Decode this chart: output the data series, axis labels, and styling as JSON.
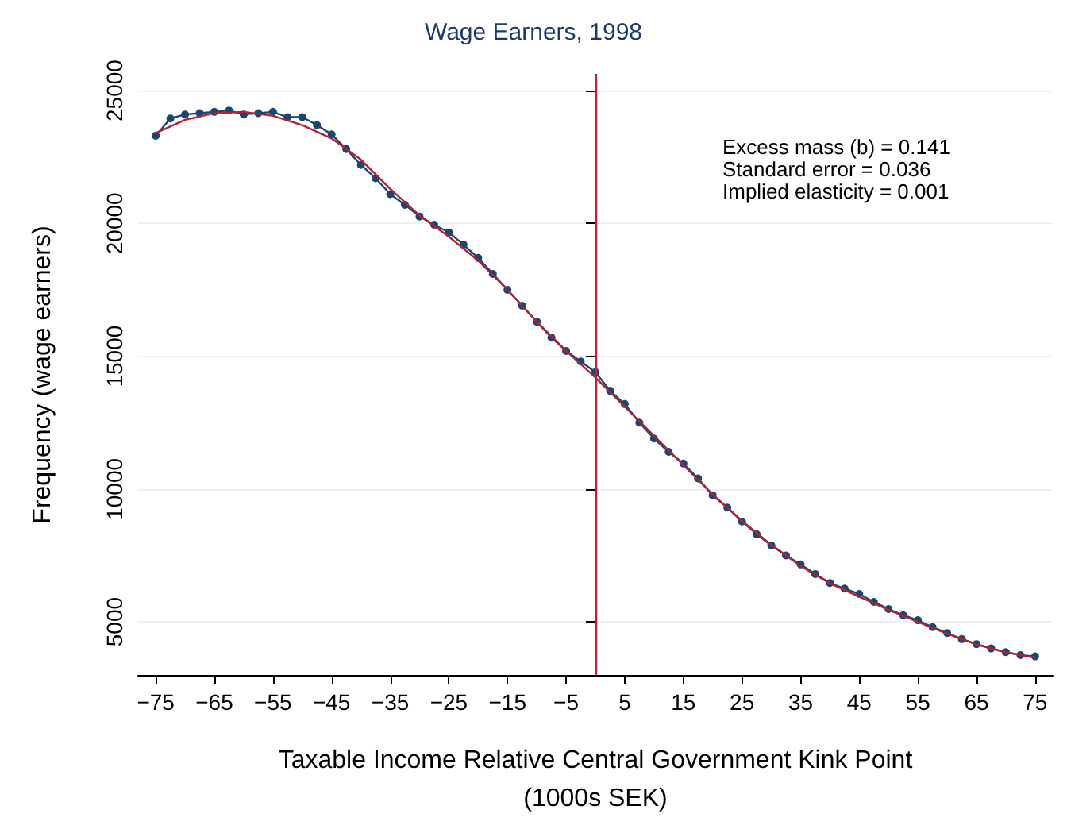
{
  "chart_data": {
    "type": "line",
    "title": "Wage Earners, 1998",
    "xlabel": "Taxable Income Relative Central Government Kink Point\n(1000s SEK)",
    "ylabel": "Frequency (wage earners)",
    "annotations": [
      "Excess mass (b) = 0.141",
      "Standard error = 0.036",
      "Implied elasticity = 0.001"
    ],
    "xlim": [
      -78,
      78
    ],
    "xticks": [
      -75,
      -65,
      -55,
      -45,
      -35,
      -25,
      -15,
      -5,
      5,
      15,
      25,
      35,
      45,
      55,
      65,
      75
    ],
    "ylim": [
      3000,
      25600
    ],
    "yticks": [
      5000,
      10000,
      15000,
      20000,
      25000
    ],
    "grid": "y",
    "ref_lines": [
      {
        "axis": "x",
        "value": 0,
        "color": "#c41e3a"
      }
    ],
    "series": [
      {
        "color": "#1a476f",
        "marker": "circle",
        "line_style": "solid",
        "x": [
          -75,
          -72.5,
          -70,
          -67.5,
          -65,
          -62.5,
          -60,
          -57.5,
          -55,
          -52.5,
          -50,
          -47.5,
          -45,
          -42.5,
          -40,
          -37.5,
          -35,
          -32.5,
          -30,
          -27.5,
          -25,
          -22.5,
          -20,
          -17.5,
          -15,
          -12.5,
          -10,
          -7.5,
          -5,
          -2.5,
          0,
          2.5,
          5,
          7.5,
          10,
          12.5,
          15,
          17.5,
          20,
          22.5,
          25,
          27.5,
          30,
          32.5,
          35,
          37.5,
          40,
          42.5,
          45,
          47.5,
          50,
          52.5,
          55,
          57.5,
          60,
          62.5,
          65,
          67.5,
          70,
          72.5,
          75
        ],
        "values": [
          23300,
          23950,
          24100,
          24150,
          24200,
          24250,
          24100,
          24150,
          24200,
          24000,
          24000,
          23700,
          23350,
          22800,
          22200,
          21700,
          21100,
          20700,
          20260,
          19950,
          19660,
          19200,
          18700,
          18100,
          17500,
          16900,
          16300,
          15700,
          15200,
          14800,
          14400,
          13700,
          13200,
          12500,
          11900,
          11400,
          10960,
          10400,
          9760,
          9300,
          8780,
          8300,
          7880,
          7500,
          7160,
          6800,
          6460,
          6250,
          6050,
          5750,
          5480,
          5250,
          5060,
          4800,
          4580,
          4350,
          4160,
          4000,
          3860,
          3750,
          3700
        ]
      },
      {
        "color": "#b22234",
        "marker": "none",
        "line_style": "solid",
        "x": [
          -75,
          -70,
          -65,
          -60,
          -55,
          -50,
          -45,
          -40,
          -35,
          -30,
          -25,
          -20,
          -15,
          -10,
          -5,
          0,
          5,
          10,
          15,
          20,
          25,
          30,
          35,
          40,
          45,
          50,
          55,
          60,
          65,
          70,
          75
        ],
        "values": [
          23400,
          23900,
          24150,
          24200,
          24050,
          23700,
          23200,
          22400,
          21300,
          20300,
          19500,
          18600,
          17500,
          16300,
          15200,
          14200,
          13100,
          12000,
          10900,
          9800,
          8800,
          7900,
          7100,
          6450,
          5950,
          5450,
          5000,
          4550,
          4150,
          3850,
          3650
        ]
      }
    ]
  }
}
